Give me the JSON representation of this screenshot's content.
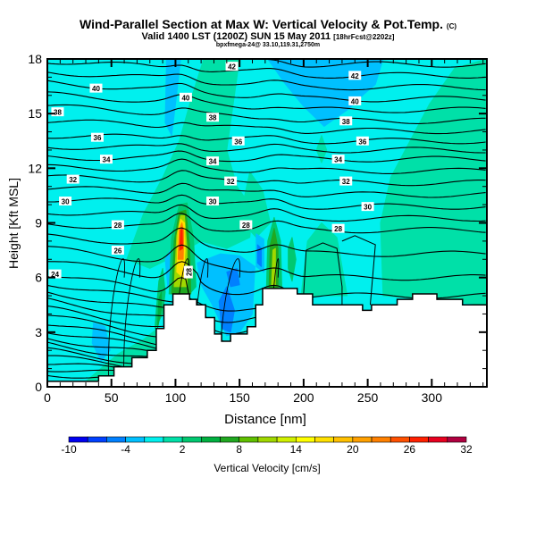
{
  "header": {
    "title": "Wind-Parallel Section at Max W: Vertical Velocity & Pot.Temp.",
    "copyright": "(C)",
    "valid": "Valid 1400 LST (1200Z) SUN 15 May 2011",
    "forecast": "[18hrFcst@2202z]",
    "subtitle": "bpxfmega-24@ 33.10,119.31,2750m"
  },
  "chart_data": {
    "type": "heatmap",
    "xlabel": "Distance [nm]",
    "ylabel": "Height [Kft MSL]",
    "xlim": [
      0,
      343
    ],
    "ylim": [
      0,
      18
    ],
    "xticks": [
      "0",
      "50",
      "100",
      "150",
      "200",
      "250",
      "300"
    ],
    "xtick_values": [
      0,
      50,
      100,
      150,
      200,
      250,
      300
    ],
    "yticks": [
      "0",
      "3",
      "6",
      "9",
      "12",
      "15",
      "18"
    ],
    "ytick_values": [
      0,
      3,
      6,
      9,
      12,
      15,
      18
    ],
    "colorbar": {
      "label": "Vertical Velocity [cm/s]",
      "ticks": [
        "-10",
        "-4",
        "2",
        "8",
        "14",
        "20",
        "26",
        "32"
      ],
      "tick_values": [
        -10,
        -4,
        2,
        8,
        14,
        20,
        26,
        32
      ],
      "levels": [
        -10,
        -8,
        -6,
        -4,
        -2,
        0,
        2,
        4,
        6,
        8,
        10,
        12,
        14,
        16,
        18,
        20,
        22,
        24,
        26,
        28,
        30,
        32
      ],
      "colors": [
        "#0000f0",
        "#0040ff",
        "#0080ff",
        "#00c0ff",
        "#00f0ee",
        "#00e0a8",
        "#00c870",
        "#00b040",
        "#20a820",
        "#60c000",
        "#a0d800",
        "#d0f000",
        "#ffff00",
        "#ffe000",
        "#ffc000",
        "#ffa000",
        "#ff8000",
        "#ff5000",
        "#ff2000",
        "#e80020",
        "#b00040"
      ]
    },
    "background_value": -1,
    "terrain": [
      [
        0,
        0.3
      ],
      [
        40,
        0.3
      ],
      [
        40,
        0.6
      ],
      [
        52,
        0.6
      ],
      [
        52,
        1.1
      ],
      [
        66,
        1.1
      ],
      [
        66,
        1.6
      ],
      [
        78,
        1.6
      ],
      [
        78,
        2.0
      ],
      [
        85,
        2.0
      ],
      [
        85,
        3.2
      ],
      [
        91,
        3.2
      ],
      [
        91,
        4.5
      ],
      [
        98,
        4.5
      ],
      [
        98,
        5.1
      ],
      [
        111,
        5.1
      ],
      [
        111,
        4.8
      ],
      [
        116.5,
        4.8
      ],
      [
        116.5,
        4.5
      ],
      [
        123.5,
        4.5
      ],
      [
        123.5,
        3.8
      ],
      [
        130.5,
        3.8
      ],
      [
        130.5,
        2.9
      ],
      [
        136,
        2.9
      ],
      [
        136,
        2.5
      ],
      [
        143,
        2.5
      ],
      [
        143,
        2.9
      ],
      [
        156,
        2.9
      ],
      [
        156,
        3.3
      ],
      [
        162.6,
        3.3
      ],
      [
        162.6,
        4.5
      ],
      [
        168,
        4.5
      ],
      [
        168,
        5.4
      ],
      [
        195,
        5.4
      ],
      [
        195,
        5.1
      ],
      [
        207,
        5.1
      ],
      [
        207,
        4.5
      ],
      [
        246,
        4.5
      ],
      [
        246,
        4.2
      ],
      [
        253,
        4.2
      ],
      [
        253,
        4.5
      ],
      [
        273,
        4.5
      ],
      [
        273,
        4.8
      ],
      [
        285,
        4.8
      ],
      [
        285,
        5.1
      ],
      [
        304,
        5.1
      ],
      [
        304,
        4.8
      ],
      [
        324,
        4.8
      ],
      [
        324,
        4.5
      ],
      [
        343,
        4.5
      ]
    ],
    "regions": [
      {
        "value": 1,
        "points": [
          [
            62,
            7
          ],
          [
            75,
            9.5
          ],
          [
            90,
            11.5
          ],
          [
            103,
            13.5
          ],
          [
            113,
            16
          ],
          [
            122,
            18
          ],
          [
            150,
            18
          ],
          [
            145,
            15.5
          ],
          [
            140,
            13
          ],
          [
            148,
            11
          ],
          [
            160,
            9.8
          ],
          [
            158,
            8.2
          ],
          [
            140,
            7.6
          ],
          [
            120,
            8
          ],
          [
            100,
            7.2
          ],
          [
            80,
            6.5
          ]
        ]
      },
      {
        "value": 1,
        "points": [
          [
            262,
            5
          ],
          [
            260,
            9
          ],
          [
            268,
            11.5
          ],
          [
            283,
            13.5
          ],
          [
            298,
            15.5
          ],
          [
            318,
            17.5
          ],
          [
            343,
            18
          ],
          [
            343,
            4.5
          ]
        ]
      },
      {
        "value": 1,
        "points": [
          [
            150,
            9.2
          ],
          [
            158,
            11.8
          ],
          [
            168,
            10.8
          ],
          [
            174,
            9
          ],
          [
            163,
            8.2
          ]
        ]
      },
      {
        "value": 1,
        "points": [
          [
            198,
            5
          ],
          [
            203,
            8
          ],
          [
            214,
            9
          ],
          [
            226,
            8.2
          ],
          [
            234,
            5
          ]
        ]
      },
      {
        "value": 1,
        "points": [
          [
            30,
            0.3
          ],
          [
            55,
            1.8
          ],
          [
            75,
            2.6
          ],
          [
            86,
            3.2
          ],
          [
            86,
            0.3
          ]
        ]
      },
      {
        "value": 1,
        "points": [
          [
            210,
            13
          ],
          [
            214,
            12.3
          ],
          [
            218,
            13
          ],
          [
            214,
            13.8
          ]
        ]
      },
      {
        "value": -3,
        "points": [
          [
            172,
            18
          ],
          [
            262,
            18
          ],
          [
            256,
            16.6
          ],
          [
            246,
            16
          ],
          [
            236,
            15.3
          ],
          [
            216,
            14.3
          ],
          [
            200,
            15.4
          ],
          [
            186,
            16.6
          ]
        ]
      },
      {
        "value": -3,
        "points": [
          [
            93,
            18
          ],
          [
            104,
            18
          ],
          [
            100,
            15.5
          ],
          [
            97,
            13.8
          ],
          [
            92,
            14.5
          ]
        ]
      },
      {
        "value": -3,
        "points": [
          [
            117,
            6.8
          ],
          [
            135,
            7.3
          ],
          [
            150,
            7.2
          ],
          [
            162,
            6.6
          ],
          [
            160,
            4
          ],
          [
            150,
            3
          ],
          [
            140,
            2.8
          ],
          [
            128,
            4.6
          ],
          [
            120,
            5.6
          ]
        ]
      },
      {
        "value": -3,
        "points": [
          [
            36,
            3.5
          ],
          [
            45,
            3.3
          ],
          [
            49,
            2
          ],
          [
            42,
            1.4
          ],
          [
            35,
            2.4
          ]
        ]
      },
      {
        "value": -3,
        "points": [
          [
            163,
            8.4
          ],
          [
            169,
            8.1
          ],
          [
            169,
            6.3
          ],
          [
            163,
            6.6
          ]
        ]
      },
      {
        "value": -3,
        "points": [
          [
            92,
            7
          ],
          [
            96,
            7.5
          ],
          [
            98,
            6
          ],
          [
            94,
            5.5
          ]
        ]
      },
      {
        "value": -5,
        "points": [
          [
            134,
            4.7
          ],
          [
            140,
            5.5
          ],
          [
            146,
            4.2
          ],
          [
            143,
            3
          ],
          [
            136,
            3.2
          ]
        ]
      },
      {
        "value": -5,
        "points": [
          [
            140,
            6.3
          ],
          [
            148,
            6.5
          ],
          [
            150,
            5.6
          ],
          [
            143,
            5.5
          ]
        ]
      },
      {
        "value": -5,
        "points": [
          [
            164,
            7.8
          ],
          [
            167,
            7.6
          ],
          [
            167,
            6.6
          ],
          [
            164,
            6.8
          ]
        ]
      },
      {
        "value": 3,
        "points": [
          [
            84,
            3.2
          ],
          [
            90,
            4
          ],
          [
            92,
            5.2
          ],
          [
            90,
            6.5
          ],
          [
            87,
            5.8
          ],
          [
            85,
            4.2
          ]
        ]
      },
      {
        "value": 3,
        "points": [
          [
            95,
            5.1
          ],
          [
            97,
            8.2
          ],
          [
            103,
            10
          ],
          [
            109,
            10.1
          ],
          [
            114,
            8.2
          ],
          [
            116,
            5.5
          ],
          [
            111,
            5.1
          ]
        ]
      },
      {
        "value": 3,
        "points": [
          [
            171,
            5.4
          ],
          [
            172,
            8
          ],
          [
            177,
            9.3
          ],
          [
            182,
            8
          ],
          [
            183,
            5.4
          ]
        ]
      },
      {
        "value": 3,
        "points": [
          [
            188,
            7.6
          ],
          [
            191,
            8.2
          ],
          [
            194,
            7
          ],
          [
            191,
            5.8
          ],
          [
            188,
            6.5
          ]
        ]
      },
      {
        "value": 5,
        "points": [
          [
            86,
            3.2
          ],
          [
            89,
            4.3
          ],
          [
            89,
            5.2
          ],
          [
            87,
            4.8
          ]
        ]
      },
      {
        "value": 7,
        "points": [
          [
            97,
            5.1
          ],
          [
            99,
            8
          ],
          [
            103,
            9.6
          ],
          [
            108,
            9.7
          ],
          [
            111,
            7.8
          ],
          [
            112,
            5.1
          ]
        ]
      },
      {
        "value": 7,
        "points": [
          [
            173,
            5.4
          ],
          [
            174,
            7.8
          ],
          [
            177,
            8.7
          ],
          [
            180,
            7.6
          ],
          [
            180,
            5.4
          ]
        ]
      },
      {
        "value": 11,
        "points": [
          [
            99,
            5.5
          ],
          [
            101,
            8.3
          ],
          [
            104,
            9.4
          ],
          [
            107,
            9.4
          ],
          [
            109,
            7.6
          ],
          [
            109,
            5.5
          ]
        ]
      },
      {
        "value": 11,
        "points": [
          [
            175,
            5.6
          ],
          [
            176,
            7.5
          ],
          [
            178,
            7.6
          ],
          [
            178,
            5.6
          ]
        ]
      },
      {
        "value": 17,
        "points": [
          [
            101,
            6.3
          ],
          [
            102,
            8.5
          ],
          [
            104,
            9.2
          ],
          [
            107,
            9
          ],
          [
            107.5,
            7.5
          ],
          [
            106,
            6
          ]
        ]
      },
      {
        "value": 23,
        "points": [
          [
            102,
            7
          ],
          [
            103,
            8.6
          ],
          [
            105,
            9
          ],
          [
            106.5,
            8.5
          ],
          [
            106,
            7
          ]
        ]
      },
      {
        "value": 27,
        "points": [
          [
            103.3,
            7.5
          ],
          [
            104,
            8.6
          ],
          [
            105.3,
            8.7
          ],
          [
            105.6,
            7.6
          ]
        ]
      }
    ],
    "theta_levels": [
      10,
      11,
      12,
      13,
      14,
      15,
      16,
      17,
      18,
      19,
      20,
      21,
      22,
      23,
      24,
      25,
      26,
      27,
      28,
      29,
      30,
      31,
      32,
      33,
      34,
      35,
      36,
      37,
      38,
      39,
      40,
      41,
      42,
      43
    ],
    "theta_labels": [
      {
        "text": "40",
        "x": 38,
        "y": 16.4
      },
      {
        "text": "38",
        "x": 8,
        "y": 15.1
      },
      {
        "text": "36",
        "x": 39,
        "y": 13.7
      },
      {
        "text": "34",
        "x": 46,
        "y": 12.5
      },
      {
        "text": "32",
        "x": 20,
        "y": 11.4
      },
      {
        "text": "30",
        "x": 14,
        "y": 10.2
      },
      {
        "text": "28",
        "x": 55,
        "y": 8.9
      },
      {
        "text": "26",
        "x": 55,
        "y": 7.5
      },
      {
        "text": "24",
        "x": 6,
        "y": 6.2
      },
      {
        "text": "42",
        "x": 144,
        "y": 17.6
      },
      {
        "text": "40",
        "x": 108,
        "y": 15.9
      },
      {
        "text": "38",
        "x": 129,
        "y": 14.8
      },
      {
        "text": "36",
        "x": 149,
        "y": 13.5
      },
      {
        "text": "34",
        "x": 129,
        "y": 12.4
      },
      {
        "text": "32",
        "x": 143,
        "y": 11.3
      },
      {
        "text": "30",
        "x": 129,
        "y": 10.2
      },
      {
        "text": "28",
        "x": 155,
        "y": 8.9
      },
      {
        "text": "42",
        "x": 240,
        "y": 17.1
      },
      {
        "text": "40",
        "x": 240,
        "y": 15.7
      },
      {
        "text": "38",
        "x": 233,
        "y": 14.6
      },
      {
        "text": "36",
        "x": 246,
        "y": 13.5
      },
      {
        "text": "34",
        "x": 227,
        "y": 12.5
      },
      {
        "text": "32",
        "x": 233,
        "y": 11.3
      },
      {
        "text": "30",
        "x": 250,
        "y": 9.9
      },
      {
        "text": "28",
        "x": 227,
        "y": 8.7
      }
    ],
    "theta_label_vertical": {
      "text": "28",
      "x": 110,
      "y": 6.3
    }
  }
}
